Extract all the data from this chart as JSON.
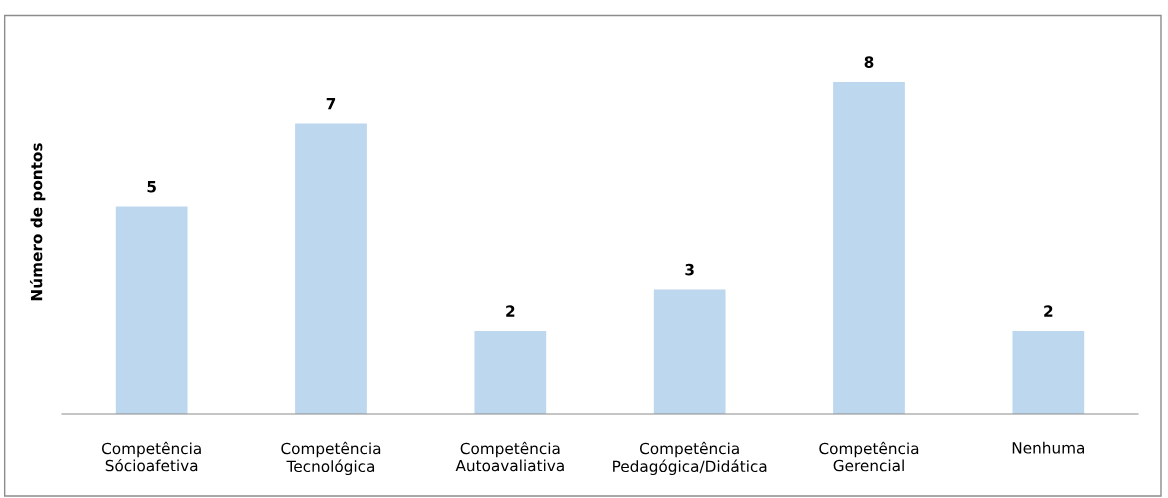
{
  "chart_data": {
    "type": "bar",
    "ylabel": "Número de pontos",
    "categories": [
      "Competência\nSócioafetiva",
      "Competência\nTecnológica",
      "Competência\nAutoavaliativa",
      "Competência\nPedagógica/Didática",
      "Competência\nGerencial",
      "Nenhuma"
    ],
    "values": [
      5,
      7,
      2,
      3,
      8,
      2
    ],
    "color": "#bdd7ee",
    "data_labels": true,
    "grid": false,
    "legend": false
  }
}
